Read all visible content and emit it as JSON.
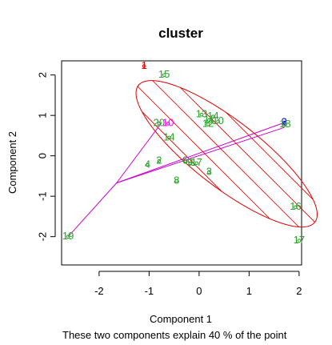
{
  "chart_data": {
    "type": "scatter",
    "title": "cluster",
    "xlabel": "Component 1",
    "ylabel": "Component 2",
    "subtitle": "These two components explain 40 % of the point",
    "xlim": [
      -2.75,
      2.05
    ],
    "ylim": [
      -2.7,
      2.35
    ],
    "x_ticks": [
      -2,
      -1,
      0,
      1,
      2
    ],
    "y_ticks": [
      -2,
      -1,
      0,
      1,
      2
    ],
    "x_tick_labels": [
      "-2",
      "-1",
      "0",
      "1",
      "2"
    ],
    "y_tick_labels": [
      "-2",
      "-1",
      "0",
      "1",
      "2"
    ],
    "grid": false,
    "legend": "none",
    "colors": {
      "cluster_main": "#2ca02c",
      "cluster_top": "#e00000",
      "cluster_right": "#0000ff",
      "cluster_mid": "#ff00ff",
      "ellipse": "#e00000",
      "lines": "#cc00cc",
      "axis": "#000000"
    },
    "points": [
      {
        "label": "1",
        "x": -1.1,
        "y": 2.22,
        "color": "#e00000"
      },
      {
        "label": "15",
        "x": -0.7,
        "y": 2.0,
        "color": "#2ca02c"
      },
      {
        "label": "13",
        "x": 0.05,
        "y": 1.02,
        "color": "#2ca02c"
      },
      {
        "label": "14",
        "x": 0.28,
        "y": 0.97,
        "color": "#2ca02c"
      },
      {
        "label": "11",
        "x": 0.2,
        "y": 0.88,
        "color": "#2ca02c"
      },
      {
        "label": "10",
        "x": 0.38,
        "y": 0.85,
        "color": "#2ca02c"
      },
      {
        "label": "12",
        "x": 0.18,
        "y": 0.78,
        "color": "#2ca02c"
      },
      {
        "label": "2",
        "x": 1.7,
        "y": 0.82,
        "color": "#0000ff"
      },
      {
        "label": "18",
        "x": 1.72,
        "y": 0.77,
        "color": "#2ca02c"
      },
      {
        "label": "20",
        "x": -0.8,
        "y": 0.8,
        "color": "#2ca02c"
      },
      {
        "label": "10",
        "x": -0.62,
        "y": 0.8,
        "color": "#ff00ff"
      },
      {
        "label": "14",
        "x": -0.6,
        "y": 0.45,
        "color": "#2ca02c"
      },
      {
        "label": "2",
        "x": -0.8,
        "y": -0.13,
        "color": "#2ca02c"
      },
      {
        "label": "4",
        "x": -1.03,
        "y": -0.23,
        "color": "#2ca02c"
      },
      {
        "label": "6",
        "x": -0.28,
        "y": -0.13,
        "color": "#2ca02c"
      },
      {
        "label": "9",
        "x": -0.18,
        "y": -0.18,
        "color": "#2ca02c"
      },
      {
        "label": "17",
        "x": -0.05,
        "y": -0.18,
        "color": "#2ca02c"
      },
      {
        "label": "3",
        "x": 0.2,
        "y": -0.4,
        "color": "#2ca02c"
      },
      {
        "label": "8",
        "x": -0.45,
        "y": -0.62,
        "color": "#2ca02c"
      },
      {
        "label": "16",
        "x": 1.93,
        "y": -1.27,
        "color": "#2ca02c"
      },
      {
        "label": "17",
        "x": 2.0,
        "y": -2.1,
        "color": "#2ca02c"
      },
      {
        "label": "19",
        "x": -2.62,
        "y": -2.0,
        "color": "#2ca02c"
      }
    ],
    "ellipse": {
      "cx": 0.55,
      "cy": 0.05,
      "rx": 2.45,
      "ry": 0.75,
      "angle_deg": -45
    },
    "hub": {
      "x": -1.65,
      "y": -0.67
    },
    "hub_targets": [
      {
        "x": -0.75,
        "y": 0.82
      },
      {
        "x": 1.7,
        "y": 0.82
      },
      {
        "x": 1.7,
        "y": 0.7
      },
      {
        "x": -2.62,
        "y": -2.0
      }
    ]
  }
}
